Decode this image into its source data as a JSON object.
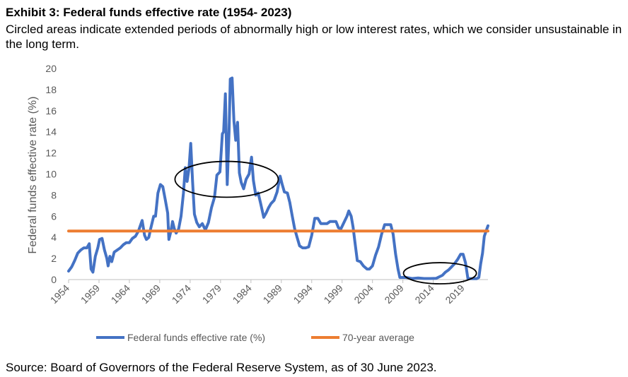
{
  "header": {
    "title": "Exhibit 3: Federal funds effective rate (1954- 2023)",
    "subtitle": "Circled areas indicate extended periods of abnormally high or low interest rates, which we consider unsustainable in the long term."
  },
  "footer": {
    "source": "Source: Board of Governors of the Federal Reserve System, as of 30 June 2023."
  },
  "chart_data": {
    "type": "line",
    "title": "",
    "xlabel": "",
    "ylabel": "Federal funds effective rate (%)",
    "xlim": [
      1954.5,
      2023.5
    ],
    "ylim": [
      0,
      20
    ],
    "y_ticks": [
      0,
      2,
      4,
      6,
      8,
      10,
      12,
      14,
      16,
      18,
      20
    ],
    "x_ticks": [
      "1954",
      "1959",
      "1964",
      "1969",
      "1974",
      "1979",
      "1984",
      "1989",
      "1994",
      "1999",
      "2004",
      "2009",
      "2014",
      "2019"
    ],
    "x_tick_values": [
      1954.5,
      1959.5,
      1964.5,
      1969.5,
      1974.5,
      1979.5,
      1984.5,
      1989.5,
      1994.5,
      1999.5,
      2004.5,
      2009.5,
      2014.5,
      2019.5
    ],
    "grid": false,
    "legend_position": "bottom",
    "series": [
      {
        "name": "Federal funds effective rate (%)",
        "color": "#4472c4",
        "points": [
          [
            1954.5,
            0.8
          ],
          [
            1955.0,
            1.2
          ],
          [
            1955.5,
            1.8
          ],
          [
            1956.0,
            2.5
          ],
          [
            1956.5,
            2.8
          ],
          [
            1957.0,
            3.0
          ],
          [
            1957.5,
            3.0
          ],
          [
            1957.9,
            3.4
          ],
          [
            1958.2,
            1.0
          ],
          [
            1958.5,
            0.7
          ],
          [
            1958.9,
            2.2
          ],
          [
            1959.3,
            3.0
          ],
          [
            1959.6,
            3.8
          ],
          [
            1960.0,
            3.9
          ],
          [
            1960.4,
            2.8
          ],
          [
            1960.8,
            2.0
          ],
          [
            1961.0,
            1.3
          ],
          [
            1961.3,
            2.2
          ],
          [
            1961.6,
            1.7
          ],
          [
            1962.0,
            2.6
          ],
          [
            1962.5,
            2.8
          ],
          [
            1963.0,
            3.0
          ],
          [
            1963.5,
            3.3
          ],
          [
            1964.0,
            3.5
          ],
          [
            1964.5,
            3.5
          ],
          [
            1965.0,
            3.9
          ],
          [
            1965.5,
            4.1
          ],
          [
            1966.0,
            4.6
          ],
          [
            1966.6,
            5.6
          ],
          [
            1967.0,
            4.2
          ],
          [
            1967.3,
            3.8
          ],
          [
            1967.7,
            4.0
          ],
          [
            1968.0,
            4.8
          ],
          [
            1968.5,
            6.0
          ],
          [
            1968.8,
            6.0
          ],
          [
            1969.2,
            8.2
          ],
          [
            1969.6,
            9.0
          ],
          [
            1970.0,
            8.8
          ],
          [
            1970.4,
            7.6
          ],
          [
            1970.8,
            6.3
          ],
          [
            1971.0,
            3.8
          ],
          [
            1971.3,
            4.5
          ],
          [
            1971.6,
            5.5
          ],
          [
            1971.9,
            4.8
          ],
          [
            1972.2,
            4.4
          ],
          [
            1972.6,
            4.8
          ],
          [
            1973.0,
            6.0
          ],
          [
            1973.4,
            8.2
          ],
          [
            1973.7,
            10.6
          ],
          [
            1974.0,
            9.3
          ],
          [
            1974.3,
            10.5
          ],
          [
            1974.6,
            12.9
          ],
          [
            1974.9,
            9.3
          ],
          [
            1975.2,
            6.2
          ],
          [
            1975.6,
            5.4
          ],
          [
            1976.0,
            5.0
          ],
          [
            1976.5,
            5.3
          ],
          [
            1977.0,
            4.7
          ],
          [
            1977.5,
            5.4
          ],
          [
            1978.0,
            6.8
          ],
          [
            1978.5,
            7.8
          ],
          [
            1978.9,
            9.9
          ],
          [
            1979.4,
            10.2
          ],
          [
            1979.8,
            13.8
          ],
          [
            1980.0,
            14.0
          ],
          [
            1980.3,
            17.6
          ],
          [
            1980.6,
            9.0
          ],
          [
            1980.9,
            14.0
          ],
          [
            1981.1,
            19.0
          ],
          [
            1981.4,
            19.1
          ],
          [
            1981.7,
            15.0
          ],
          [
            1982.0,
            13.2
          ],
          [
            1982.3,
            14.9
          ],
          [
            1982.6,
            10.1
          ],
          [
            1982.9,
            9.2
          ],
          [
            1983.3,
            8.6
          ],
          [
            1983.7,
            9.5
          ],
          [
            1984.2,
            10.0
          ],
          [
            1984.6,
            11.6
          ],
          [
            1984.9,
            9.4
          ],
          [
            1985.3,
            8.0
          ],
          [
            1985.7,
            8.2
          ],
          [
            1986.1,
            7.2
          ],
          [
            1986.6,
            5.9
          ],
          [
            1987.0,
            6.3
          ],
          [
            1987.4,
            6.8
          ],
          [
            1987.8,
            7.2
          ],
          [
            1988.3,
            7.5
          ],
          [
            1988.8,
            8.3
          ],
          [
            1989.3,
            9.8
          ],
          [
            1989.6,
            9.1
          ],
          [
            1990.0,
            8.3
          ],
          [
            1990.5,
            8.2
          ],
          [
            1990.9,
            7.3
          ],
          [
            1991.3,
            6.0
          ],
          [
            1991.7,
            4.8
          ],
          [
            1992.1,
            4.0
          ],
          [
            1992.5,
            3.2
          ],
          [
            1993.0,
            3.0
          ],
          [
            1993.5,
            3.0
          ],
          [
            1994.0,
            3.1
          ],
          [
            1994.5,
            4.2
          ],
          [
            1995.0,
            5.8
          ],
          [
            1995.5,
            5.8
          ],
          [
            1996.0,
            5.3
          ],
          [
            1996.5,
            5.3
          ],
          [
            1997.0,
            5.3
          ],
          [
            1997.5,
            5.5
          ],
          [
            1998.0,
            5.5
          ],
          [
            1998.5,
            5.5
          ],
          [
            1998.9,
            4.9
          ],
          [
            1999.3,
            4.8
          ],
          [
            1999.8,
            5.4
          ],
          [
            2000.3,
            6.0
          ],
          [
            2000.6,
            6.5
          ],
          [
            2001.0,
            6.0
          ],
          [
            2001.3,
            5.0
          ],
          [
            2001.6,
            3.6
          ],
          [
            2002.0,
            1.8
          ],
          [
            2002.5,
            1.7
          ],
          [
            2003.0,
            1.3
          ],
          [
            2003.6,
            1.0
          ],
          [
            2004.0,
            1.0
          ],
          [
            2004.5,
            1.3
          ],
          [
            2005.0,
            2.3
          ],
          [
            2005.5,
            3.1
          ],
          [
            2006.0,
            4.3
          ],
          [
            2006.5,
            5.2
          ],
          [
            2007.0,
            5.2
          ],
          [
            2007.5,
            5.2
          ],
          [
            2007.9,
            4.3
          ],
          [
            2008.3,
            2.4
          ],
          [
            2008.7,
            1.0
          ],
          [
            2009.0,
            0.2
          ],
          [
            2010.0,
            0.2
          ],
          [
            2011.0,
            0.1
          ],
          [
            2012.0,
            0.15
          ],
          [
            2013.0,
            0.1
          ],
          [
            2014.0,
            0.1
          ],
          [
            2015.0,
            0.12
          ],
          [
            2016.0,
            0.4
          ],
          [
            2016.5,
            0.7
          ],
          [
            2017.0,
            0.9
          ],
          [
            2017.5,
            1.2
          ],
          [
            2018.0,
            1.5
          ],
          [
            2018.5,
            1.9
          ],
          [
            2019.0,
            2.4
          ],
          [
            2019.4,
            2.4
          ],
          [
            2019.8,
            1.6
          ],
          [
            2020.2,
            0.1
          ],
          [
            2021.0,
            0.08
          ],
          [
            2021.6,
            0.08
          ],
          [
            2022.0,
            0.2
          ],
          [
            2022.3,
            1.5
          ],
          [
            2022.6,
            2.5
          ],
          [
            2022.9,
            4.1
          ],
          [
            2023.2,
            4.6
          ],
          [
            2023.5,
            5.1
          ]
        ]
      },
      {
        "name": "70-year average",
        "color": "#ed7d31",
        "points": [
          [
            1954.5,
            4.6
          ],
          [
            2023.5,
            4.6
          ]
        ]
      }
    ],
    "annotations": [
      {
        "type": "ellipse",
        "cx": 1980.5,
        "cy": 9.5,
        "rx": 8.5,
        "ry": 1.7
      },
      {
        "type": "ellipse",
        "cx": 2015.6,
        "cy": 0.6,
        "rx": 6.0,
        "ry": 1.0
      }
    ]
  }
}
